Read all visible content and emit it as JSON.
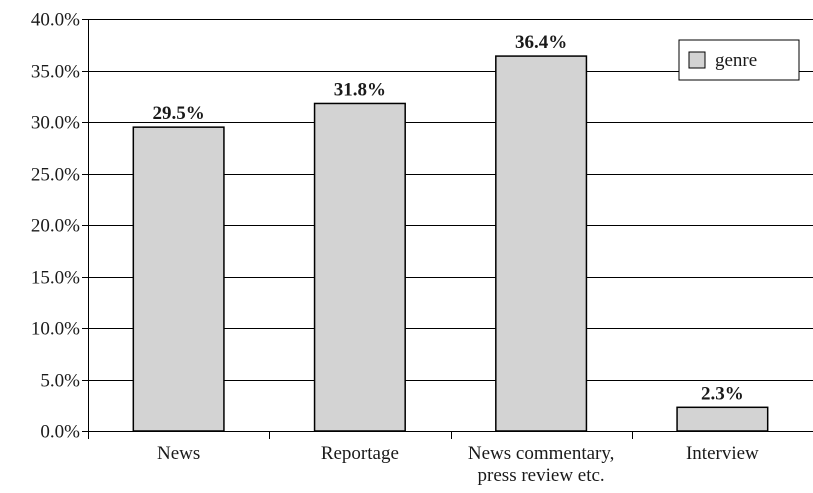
{
  "chart_data": {
    "type": "bar",
    "categories": [
      [
        "News"
      ],
      [
        "Reportage"
      ],
      [
        "News commentary,",
        "press review etc."
      ],
      [
        "Interview"
      ]
    ],
    "series": [
      {
        "name": "genre",
        "values": [
          29.5,
          31.8,
          36.4,
          2.3
        ]
      }
    ],
    "value_labels": [
      "29.5%",
      "31.8%",
      "36.4%",
      "2.3%"
    ],
    "y_ticks": [
      {
        "value": 0,
        "label": "0.0%"
      },
      {
        "value": 5,
        "label": "5.0%"
      },
      {
        "value": 10,
        "label": "10.0%"
      },
      {
        "value": 15,
        "label": "15.0%"
      },
      {
        "value": 20,
        "label": "20.0%"
      },
      {
        "value": 25,
        "label": "25.0%"
      },
      {
        "value": 30,
        "label": "30.0%"
      },
      {
        "value": 35,
        "label": "35.0%"
      },
      {
        "value": 40,
        "label": "40.0%"
      }
    ],
    "ylim": [
      0,
      40
    ],
    "grid": true,
    "legend_position": "top-right",
    "colors": {
      "bar_fill": "#d3d3d3",
      "bar_stroke": "#000000",
      "grid": "#000000"
    }
  }
}
